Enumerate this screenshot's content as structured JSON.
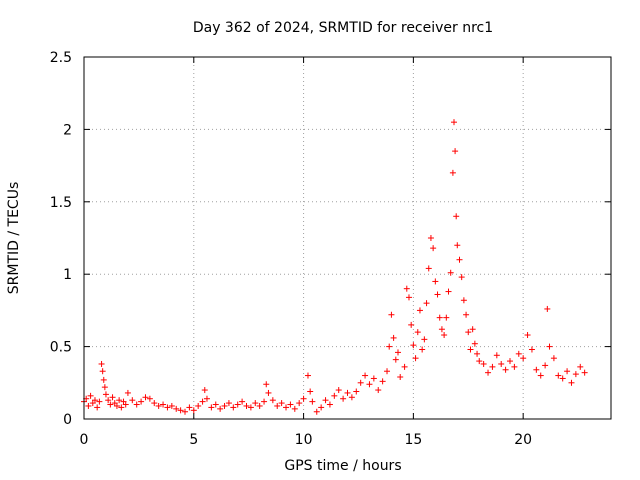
{
  "chart_data": {
    "type": "scatter",
    "title": "Day 362 of 2024, SRMTID for receiver nrc1",
    "xlabel": "GPS time / hours",
    "ylabel": "SRMTID / TECUs",
    "xlim": [
      0,
      24
    ],
    "ylim": [
      0,
      2.5
    ],
    "grid": true,
    "marker": "+",
    "series_color": "#ff0000",
    "x_ticks": [
      {
        "value": 0,
        "label": "0"
      },
      {
        "value": 5,
        "label": "5"
      },
      {
        "value": 10,
        "label": "10"
      },
      {
        "value": 15,
        "label": "15"
      },
      {
        "value": 20,
        "label": "20"
      }
    ],
    "y_ticks": [
      {
        "value": 0,
        "label": "0"
      },
      {
        "value": 0.5,
        "label": "0.5"
      },
      {
        "value": 1,
        "label": "1"
      },
      {
        "value": 1.5,
        "label": "1.5"
      },
      {
        "value": 2,
        "label": "2"
      },
      {
        "value": 2.5,
        "label": "2.5"
      }
    ],
    "series": [
      {
        "name": "SRMTID nrc1",
        "points": [
          [
            0.0,
            0.12
          ],
          [
            0.1,
            0.14
          ],
          [
            0.2,
            0.09
          ],
          [
            0.3,
            0.16
          ],
          [
            0.4,
            0.11
          ],
          [
            0.5,
            0.13
          ],
          [
            0.6,
            0.08
          ],
          [
            0.7,
            0.12
          ],
          [
            0.8,
            0.38
          ],
          [
            0.85,
            0.33
          ],
          [
            0.9,
            0.27
          ],
          [
            0.95,
            0.22
          ],
          [
            1.0,
            0.17
          ],
          [
            1.1,
            0.13
          ],
          [
            1.2,
            0.1
          ],
          [
            1.3,
            0.15
          ],
          [
            1.4,
            0.11
          ],
          [
            1.5,
            0.09
          ],
          [
            1.6,
            0.13
          ],
          [
            1.7,
            0.08
          ],
          [
            1.8,
            0.12
          ],
          [
            1.9,
            0.1
          ],
          [
            2.0,
            0.18
          ],
          [
            2.2,
            0.13
          ],
          [
            2.4,
            0.1
          ],
          [
            2.6,
            0.12
          ],
          [
            2.8,
            0.15
          ],
          [
            3.0,
            0.14
          ],
          [
            3.2,
            0.11
          ],
          [
            3.4,
            0.09
          ],
          [
            3.6,
            0.1
          ],
          [
            3.8,
            0.08
          ],
          [
            4.0,
            0.09
          ],
          [
            4.2,
            0.07
          ],
          [
            4.4,
            0.06
          ],
          [
            4.6,
            0.05
          ],
          [
            4.8,
            0.08
          ],
          [
            5.0,
            0.06
          ],
          [
            5.2,
            0.09
          ],
          [
            5.4,
            0.12
          ],
          [
            5.5,
            0.2
          ],
          [
            5.6,
            0.14
          ],
          [
            5.8,
            0.08
          ],
          [
            6.0,
            0.1
          ],
          [
            6.2,
            0.07
          ],
          [
            6.4,
            0.09
          ],
          [
            6.6,
            0.11
          ],
          [
            6.8,
            0.08
          ],
          [
            7.0,
            0.1
          ],
          [
            7.2,
            0.12
          ],
          [
            7.4,
            0.09
          ],
          [
            7.6,
            0.08
          ],
          [
            7.8,
            0.11
          ],
          [
            8.0,
            0.09
          ],
          [
            8.2,
            0.12
          ],
          [
            8.3,
            0.24
          ],
          [
            8.4,
            0.18
          ],
          [
            8.6,
            0.13
          ],
          [
            8.8,
            0.09
          ],
          [
            9.0,
            0.11
          ],
          [
            9.2,
            0.08
          ],
          [
            9.4,
            0.1
          ],
          [
            9.6,
            0.07
          ],
          [
            9.8,
            0.11
          ],
          [
            10.0,
            0.14
          ],
          [
            10.2,
            0.3
          ],
          [
            10.3,
            0.19
          ],
          [
            10.4,
            0.12
          ],
          [
            10.6,
            0.05
          ],
          [
            10.8,
            0.08
          ],
          [
            11.0,
            0.13
          ],
          [
            11.2,
            0.1
          ],
          [
            11.4,
            0.16
          ],
          [
            11.6,
            0.2
          ],
          [
            11.8,
            0.14
          ],
          [
            12.0,
            0.18
          ],
          [
            12.2,
            0.15
          ],
          [
            12.4,
            0.19
          ],
          [
            12.6,
            0.25
          ],
          [
            12.8,
            0.3
          ],
          [
            13.0,
            0.24
          ],
          [
            13.2,
            0.28
          ],
          [
            13.4,
            0.2
          ],
          [
            13.6,
            0.26
          ],
          [
            13.8,
            0.33
          ],
          [
            13.9,
            0.5
          ],
          [
            14.0,
            0.72
          ],
          [
            14.1,
            0.56
          ],
          [
            14.2,
            0.41
          ],
          [
            14.3,
            0.46
          ],
          [
            14.4,
            0.29
          ],
          [
            14.6,
            0.36
          ],
          [
            14.7,
            0.9
          ],
          [
            14.8,
            0.84
          ],
          [
            14.9,
            0.65
          ],
          [
            15.0,
            0.51
          ],
          [
            15.1,
            0.42
          ],
          [
            15.2,
            0.6
          ],
          [
            15.3,
            0.75
          ],
          [
            15.4,
            0.48
          ],
          [
            15.5,
            0.55
          ],
          [
            15.6,
            0.8
          ],
          [
            15.7,
            1.04
          ],
          [
            15.8,
            1.25
          ],
          [
            15.9,
            1.18
          ],
          [
            16.0,
            0.95
          ],
          [
            16.1,
            0.86
          ],
          [
            16.2,
            0.7
          ],
          [
            16.3,
            0.62
          ],
          [
            16.4,
            0.58
          ],
          [
            16.5,
            0.7
          ],
          [
            16.6,
            0.88
          ],
          [
            16.7,
            1.01
          ],
          [
            16.8,
            1.7
          ],
          [
            16.85,
            2.05
          ],
          [
            16.9,
            1.85
          ],
          [
            16.95,
            1.4
          ],
          [
            17.0,
            1.2
          ],
          [
            17.1,
            1.1
          ],
          [
            17.2,
            0.98
          ],
          [
            17.3,
            0.82
          ],
          [
            17.4,
            0.72
          ],
          [
            17.5,
            0.6
          ],
          [
            17.6,
            0.48
          ],
          [
            17.7,
            0.62
          ],
          [
            17.8,
            0.52
          ],
          [
            17.9,
            0.45
          ],
          [
            18.0,
            0.4
          ],
          [
            18.2,
            0.38
          ],
          [
            18.4,
            0.32
          ],
          [
            18.6,
            0.36
          ],
          [
            18.8,
            0.44
          ],
          [
            19.0,
            0.38
          ],
          [
            19.2,
            0.34
          ],
          [
            19.4,
            0.4
          ],
          [
            19.6,
            0.36
          ],
          [
            19.8,
            0.45
          ],
          [
            20.0,
            0.42
          ],
          [
            20.2,
            0.58
          ],
          [
            20.4,
            0.48
          ],
          [
            20.6,
            0.34
          ],
          [
            20.8,
            0.3
          ],
          [
            21.0,
            0.37
          ],
          [
            21.1,
            0.76
          ],
          [
            21.2,
            0.5
          ],
          [
            21.4,
            0.42
          ],
          [
            21.6,
            0.3
          ],
          [
            21.8,
            0.28
          ],
          [
            22.0,
            0.33
          ],
          [
            22.2,
            0.25
          ],
          [
            22.4,
            0.31
          ],
          [
            22.6,
            0.36
          ],
          [
            22.8,
            0.32
          ]
        ]
      }
    ]
  }
}
